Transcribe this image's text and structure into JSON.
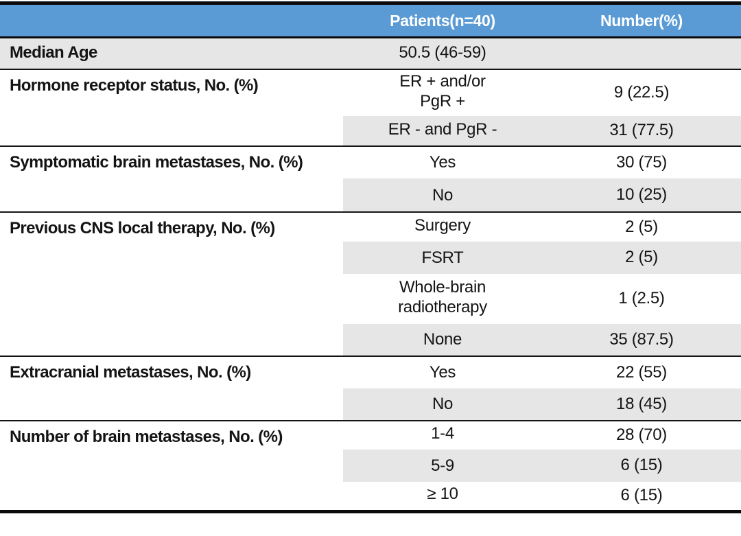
{
  "colors": {
    "header_bg": "#5b9bd5",
    "header_text": "#ffffff",
    "band_bg": "#e7e6e6",
    "rule_black": "#0a0a0a",
    "body_text": "#141414"
  },
  "table": {
    "header": {
      "label": "",
      "patients": "Patients(n=40)",
      "number": "Number(%)"
    },
    "sections": [
      {
        "label": "Median Age",
        "rows": [
          {
            "value": "50.5 (46-59)",
            "number": ""
          }
        ]
      },
      {
        "label": "Hormone receptor status, No. (%)",
        "rows": [
          {
            "value": "ER + and/or\nPgR +",
            "number": "9 (22.5)"
          },
          {
            "value": "ER - and PgR -",
            "number": "31 (77.5)"
          }
        ]
      },
      {
        "label": "Symptomatic brain metastases, No. (%)",
        "rows": [
          {
            "value": "Yes",
            "number": "30 (75)"
          },
          {
            "value": "No",
            "number": "10 (25)"
          }
        ]
      },
      {
        "label": "Previous CNS local therapy, No. (%)",
        "rows": [
          {
            "value": "Surgery",
            "number": "2 (5)"
          },
          {
            "value": "FSRT",
            "number": "2 (5)"
          },
          {
            "value": "Whole-brain\nradiotherapy",
            "number": "1 (2.5)"
          },
          {
            "value": "None",
            "number": "35 (87.5)"
          }
        ]
      },
      {
        "label": "Extracranial metastases, No. (%)",
        "rows": [
          {
            "value": "Yes",
            "number": "22 (55)"
          },
          {
            "value": "No",
            "number": "18 (45)"
          }
        ]
      },
      {
        "label": "Number of brain metastases, No. (%)",
        "rows": [
          {
            "value": "1-4",
            "number": "28 (70)"
          },
          {
            "value": "5-9",
            "number": "6 (15)"
          },
          {
            "value": "≥ 10",
            "number": "6 (15)"
          }
        ]
      }
    ]
  }
}
